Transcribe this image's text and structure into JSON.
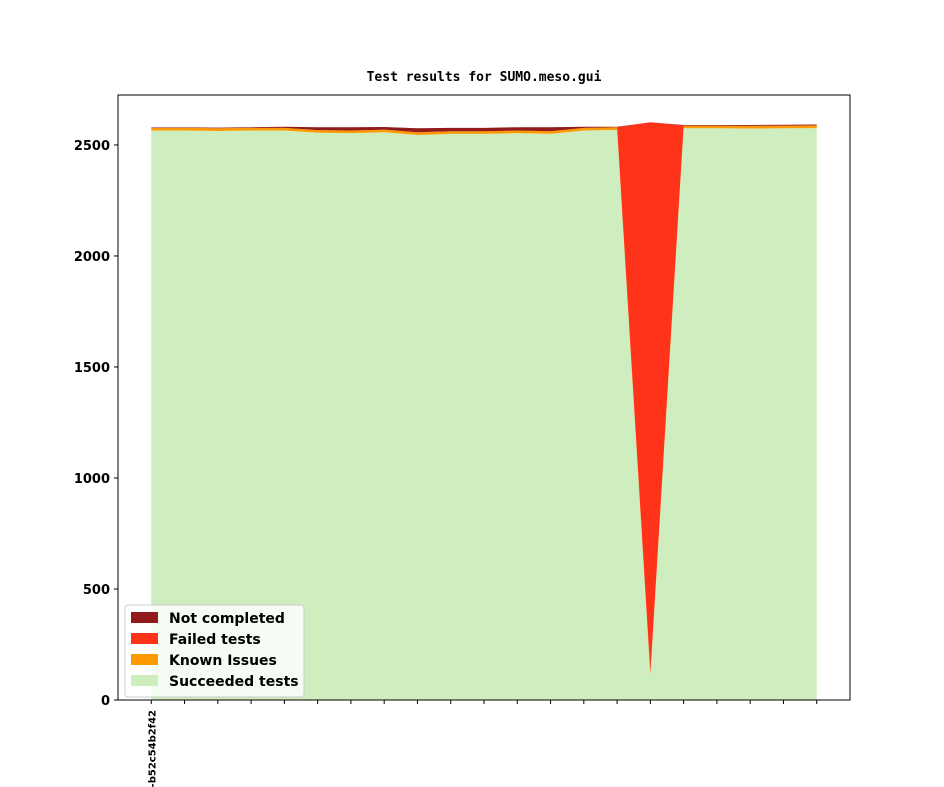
{
  "chart_data": {
    "type": "stacked_area",
    "title": "Test results for SUMO.meso.gui",
    "categories": [
      "-b52c54b2f42",
      null,
      null,
      null,
      null,
      null,
      null,
      null,
      null,
      null,
      null,
      null,
      null,
      null,
      null,
      null,
      null,
      null,
      null,
      null,
      null
    ],
    "series": [
      {
        "name": "Succeeded tests",
        "color": "#ceeec0",
        "values": [
          2565,
          2565,
          2563,
          2565,
          2565,
          2555,
          2553,
          2557,
          2545,
          2550,
          2550,
          2553,
          2550,
          2565,
          2568,
          110,
          2575,
          2575,
          2574,
          2575,
          2576
        ]
      },
      {
        "name": "Known Issues",
        "color": "#ff9900",
        "values": [
          12,
          12,
          12,
          12,
          12,
          12,
          12,
          12,
          12,
          12,
          12,
          12,
          12,
          12,
          12,
          12,
          12,
          12,
          12,
          12,
          12
        ]
      },
      {
        "name": "Failed tests",
        "color": "#ff3319",
        "values": [
          0,
          0,
          0,
          0,
          0,
          0,
          0,
          0,
          0,
          0,
          0,
          0,
          0,
          0,
          0,
          2480,
          0,
          0,
          0,
          0,
          0
        ]
      },
      {
        "name": "Not completed",
        "color": "#921a1a",
        "values": [
          2,
          2,
          3,
          3,
          5,
          13,
          15,
          12,
          18,
          15,
          15,
          15,
          18,
          5,
          2,
          0,
          3,
          3,
          4,
          4,
          4
        ]
      }
    ],
    "ylim": [
      0,
      2725
    ],
    "yticks": [
      0,
      500,
      1000,
      1500,
      2000,
      2500
    ],
    "legend": "lower left"
  }
}
